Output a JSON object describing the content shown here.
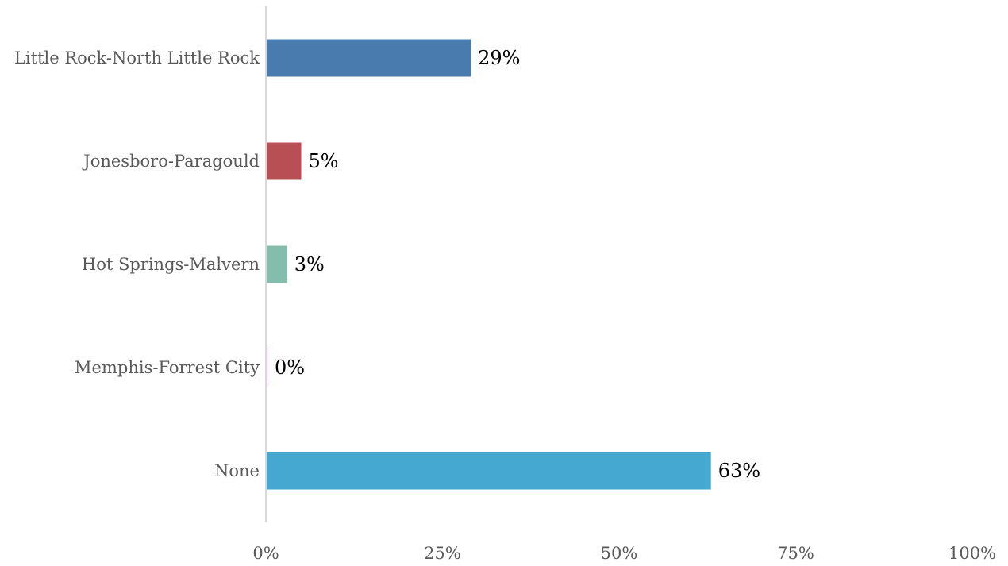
{
  "chart_data": {
    "type": "bar",
    "orientation": "horizontal",
    "title": "",
    "xlabel": "",
    "ylabel": "",
    "categories": [
      "Little Rock-North Little Rock",
      "Jonesboro-Paragould",
      "Hot Springs-Malvern",
      "Memphis-Forrest City",
      "None"
    ],
    "values": [
      29,
      5,
      3,
      0,
      63
    ],
    "data_labels": [
      "29%",
      "5%",
      "3%",
      "0%",
      "63%"
    ],
    "bar_colors": [
      "#4a7baf",
      "#b84f54",
      "#84bdab",
      "#7a5f98",
      "#45a8d0"
    ],
    "xlim": [
      0,
      100
    ],
    "x_ticks": [
      0,
      25,
      50,
      75,
      100
    ],
    "x_tick_labels": [
      "0%",
      "25%",
      "50%",
      "75%",
      "100%"
    ],
    "grid": false,
    "legend": "none"
  }
}
